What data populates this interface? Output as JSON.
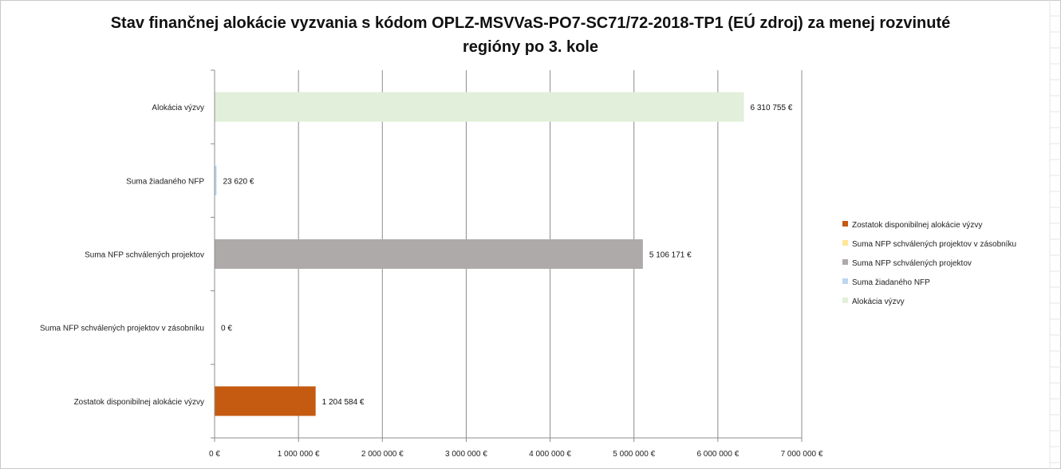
{
  "chart_data": {
    "type": "bar",
    "orientation": "horizontal",
    "title": "Stav finančnej alokácie vyzvania s kódom OPLZ-MSVVaS-PO7-SC71/72-2018-TP1 (EÚ zdroj) za menej rozvinuté regióny po 3. kole",
    "categories": [
      "Alokácia výzvy",
      "Suma žiadaného NFP",
      "Suma NFP schválených projektov",
      "Suma NFP schválených projektov v zásobníku",
      "Zostatok disponibilnej alokácie výzvy"
    ],
    "values": [
      6310755,
      23620,
      5106171,
      0,
      1204584
    ],
    "value_labels": [
      "6 310 755 €",
      "23 620 €",
      "5 106 171 €",
      "0 €",
      "1 204 584 €"
    ],
    "colors": [
      "#e2efda",
      "#bdd7ee",
      "#aeaaaa",
      "#ffe699",
      "#c55a11"
    ],
    "xlim": [
      0,
      7000000
    ],
    "ticks": [
      {
        "value": 0,
        "label": "0 €"
      },
      {
        "value": 1000000,
        "label": "1 000 000 €"
      },
      {
        "value": 2000000,
        "label": "2 000 000 €"
      },
      {
        "value": 3000000,
        "label": "3 000 000 €"
      },
      {
        "value": 4000000,
        "label": "4 000 000 €"
      },
      {
        "value": 5000000,
        "label": "5 000 000 €"
      },
      {
        "value": 6000000,
        "label": "6 000 000 €"
      },
      {
        "value": 7000000,
        "label": "7 000 000 €"
      }
    ],
    "grid": "vertical",
    "legend_position": "right",
    "legend": [
      {
        "label": "Zostatok disponibilnej alokácie výzvy",
        "color": "#c55a11"
      },
      {
        "label": "Suma NFP schválených projektov v zásobníku",
        "color": "#ffe699"
      },
      {
        "label": "Suma NFP schválených projektov",
        "color": "#aeaaaa"
      },
      {
        "label": "Suma žiadaného NFP",
        "color": "#bdd7ee"
      },
      {
        "label": "Alokácia výzvy",
        "color": "#e2efda"
      }
    ]
  }
}
